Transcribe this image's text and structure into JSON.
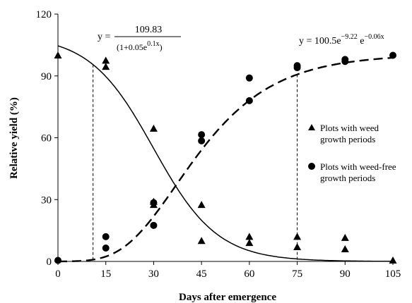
{
  "chart_data": {
    "type": "scatter",
    "xlabel": "Days after emergence",
    "ylabel": "Relative yield (%)",
    "xlim": [
      0,
      105
    ],
    "ylim": [
      0,
      120
    ],
    "x_ticks": [
      "0",
      "15",
      "30",
      "45",
      "60",
      "75",
      "90",
      "105"
    ],
    "y_ticks": [
      "0",
      "30",
      "60",
      "90",
      "120"
    ],
    "grid": false,
    "legend_position": "right",
    "series": [
      {
        "name": "Plots with weed growth periods",
        "marker": "triangle",
        "points": [
          {
            "x": 0,
            "y": 100
          },
          {
            "x": 15,
            "y": 97.5
          },
          {
            "x": 15,
            "y": 94.5
          },
          {
            "x": 30,
            "y": 64.5
          },
          {
            "x": 30,
            "y": 29
          },
          {
            "x": 30,
            "y": 27.5
          },
          {
            "x": 45,
            "y": 27.5
          },
          {
            "x": 45,
            "y": 10
          },
          {
            "x": 60,
            "y": 12
          },
          {
            "x": 60,
            "y": 9
          },
          {
            "x": 75,
            "y": 12
          },
          {
            "x": 75,
            "y": 7
          },
          {
            "x": 90,
            "y": 11.5
          },
          {
            "x": 90,
            "y": 6
          },
          {
            "x": 105,
            "y": 0.5
          }
        ]
      },
      {
        "name": "Plots with weed-free growth periods",
        "marker": "circle",
        "points": [
          {
            "x": 0,
            "y": 0.5
          },
          {
            "x": 15,
            "y": 12
          },
          {
            "x": 15,
            "y": 6.5
          },
          {
            "x": 30,
            "y": 28.5
          },
          {
            "x": 30,
            "y": 17.5
          },
          {
            "x": 45,
            "y": 61.5
          },
          {
            "x": 45,
            "y": 58.5
          },
          {
            "x": 60,
            "y": 89
          },
          {
            "x": 60,
            "y": 78
          },
          {
            "x": 75,
            "y": 95
          },
          {
            "x": 75,
            "y": 94
          },
          {
            "x": 90,
            "y": 98
          },
          {
            "x": 90,
            "y": 97
          },
          {
            "x": 105,
            "y": 100
          }
        ]
      }
    ],
    "fitted_curves": [
      {
        "style": "solid",
        "equation": {
          "lhs": "y =",
          "numerator": "109.83",
          "denominator": "(1+0.05e",
          "denominator_exp": "0.1x",
          "denominator_close": ")"
        }
      },
      {
        "style": "dashed",
        "equation": {
          "text": "y = 100.5e",
          "exp1": "−9.22",
          "mid": " e",
          "exp2": "−0.06x"
        }
      }
    ],
    "reference_lines": [
      {
        "x": 11,
        "style": "dashed"
      },
      {
        "x": 75,
        "style": "dashed"
      }
    ]
  }
}
